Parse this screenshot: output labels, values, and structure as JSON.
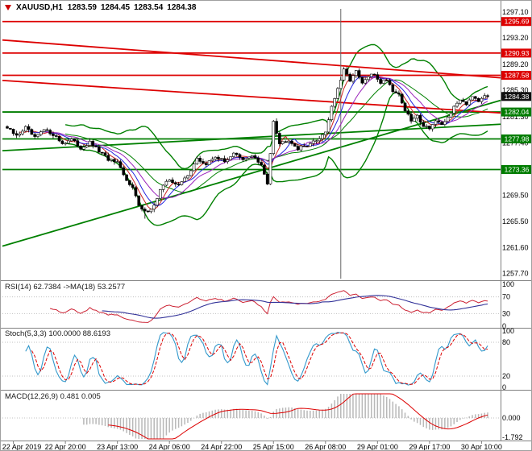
{
  "header": {
    "symbol": "XAUUSD,H1",
    "open": "1283.59",
    "high": "1284.45",
    "low": "1283.54",
    "close": "1284.38"
  },
  "colors": {
    "resistance": "#dd0000",
    "support": "#007d00",
    "current_badge": "#111111",
    "candle_up_fill": "#ffffff",
    "candle_down_fill": "#000000",
    "candle_border": "#000000",
    "bollinger": "#008000",
    "ma_fast": "#cc2222",
    "ma_mid": "#2222dd",
    "ma_slow": "#9922bb",
    "rsi_line": "#cc2233",
    "rsi_ma": "#333399",
    "stoch_k": "#3399cc",
    "stoch_d": "#dd0000",
    "macd_hist": "#b8b8b8",
    "macd_signal": "#dd0000",
    "grid_dotted": "#c0c0c0",
    "separator": "#808080",
    "axis_text": "#000000",
    "vertical_line": "#666666"
  },
  "price_axis": {
    "ticks": [
      "1297.10",
      "1293.20",
      "1289.20",
      "1285.30",
      "1281.30",
      "1277.40",
      "1273.40",
      "1269.50",
      "1265.50",
      "1261.60",
      "1257.70"
    ]
  },
  "time_axis": {
    "labels": [
      "22 Apr 2019",
      "22 Apr 20:00",
      "23 Apr 13:00",
      "24 Apr 06:00",
      "24 Apr 22:00",
      "25 Apr 15:00",
      "26 Apr 08:00",
      "29 Apr 01:00",
      "29 Apr 17:00",
      "30 Apr 10:00"
    ]
  },
  "levels": {
    "resistance": [
      "1295.69",
      "1290.93",
      "1287.58"
    ],
    "support": [
      "1282.04",
      "1277.98",
      "1273.36"
    ],
    "current": "1284.38"
  },
  "chart_data": [
    {
      "type": "candlestick",
      "title": "XAUUSD H1 candlestick chart with Bollinger Bands, moving averages, trendlines and horizontal support/resistance levels",
      "bar_count": 158,
      "price_range": [
        1256.9,
        1297.6
      ],
      "final_close": 1284.38,
      "session_low": 1265.95,
      "session_high": 1288.8,
      "close_waypoints": [
        [
          0,
          1279.6
        ],
        [
          3,
          1278.4
        ],
        [
          6,
          1279.7
        ],
        [
          9,
          1278.1
        ],
        [
          12,
          1279.3
        ],
        [
          15,
          1278.7
        ],
        [
          18,
          1277.3
        ],
        [
          21,
          1277.9
        ],
        [
          24,
          1276.6
        ],
        [
          27,
          1277.4
        ],
        [
          30,
          1276.1
        ],
        [
          33,
          1274.9
        ],
        [
          36,
          1274.3
        ],
        [
          39,
          1271.6
        ],
        [
          41,
          1270.9
        ],
        [
          43,
          1267.8
        ],
        [
          45,
          1266.9
        ],
        [
          48,
          1267.9
        ],
        [
          50,
          1270.3
        ],
        [
          53,
          1271.9
        ],
        [
          56,
          1270.9
        ],
        [
          59,
          1272.6
        ],
        [
          62,
          1274.9
        ],
        [
          65,
          1274.1
        ],
        [
          68,
          1275.4
        ],
        [
          71,
          1274.5
        ],
        [
          74,
          1275.9
        ],
        [
          77,
          1274.7
        ],
        [
          80,
          1275.6
        ],
        [
          83,
          1273.9
        ],
        [
          85,
          1271.2
        ],
        [
          87,
          1280.8
        ],
        [
          89,
          1277.3
        ],
        [
          92,
          1277.9
        ],
        [
          95,
          1276.5
        ],
        [
          98,
          1277.1
        ],
        [
          101,
          1277.7
        ],
        [
          104,
          1279.1
        ],
        [
          106,
          1282.9
        ],
        [
          108,
          1285.4
        ],
        [
          110,
          1288.3
        ],
        [
          112,
          1286.9
        ],
        [
          114,
          1288.1
        ],
        [
          116,
          1286.3
        ],
        [
          118,
          1287.4
        ],
        [
          120,
          1287.7
        ],
        [
          122,
          1286.5
        ],
        [
          124,
          1287.0
        ],
        [
          126,
          1285.3
        ],
        [
          128,
          1284.7
        ],
        [
          130,
          1282.3
        ],
        [
          132,
          1280.7
        ],
        [
          134,
          1281.4
        ],
        [
          136,
          1280.0
        ],
        [
          138,
          1279.7
        ],
        [
          140,
          1280.7
        ],
        [
          142,
          1279.9
        ],
        [
          144,
          1281.3
        ],
        [
          146,
          1282.7
        ],
        [
          148,
          1284.0
        ],
        [
          150,
          1283.3
        ],
        [
          152,
          1284.6
        ],
        [
          154,
          1283.8
        ],
        [
          156,
          1284.7
        ],
        [
          157,
          1284.38
        ]
      ],
      "overlays": [
        {
          "name": "Bollinger Bands (20,2)",
          "color": "#008000"
        },
        {
          "name": "SMA 5",
          "color": "#cc2222"
        },
        {
          "name": "SMA 8",
          "color": "#2222dd"
        },
        {
          "name": "SMA 13",
          "color": "#9922bb"
        }
      ],
      "trendlines": [
        {
          "color": "#dd0000",
          "price_start": 1292.9,
          "price_end": 1287.2
        },
        {
          "color": "#dd0000",
          "price_start": 1286.8,
          "price_end": 1281.9
        },
        {
          "color": "#008000",
          "price_start": 1261.8,
          "price_end": 1283.8
        },
        {
          "color": "#008000",
          "price_start": 1276.2,
          "price_end": 1280.2
        }
      ],
      "vertical_line_bar": 109
    },
    {
      "type": "line",
      "name": "RSI",
      "label": "RSI(14) 62.7384  ->MA(18) 53.2577",
      "period": 14,
      "ma_period": 18,
      "current": 62.7384,
      "ma_current": 53.2577,
      "range": [
        0,
        100
      ],
      "level_lines": [
        30,
        70
      ],
      "scale_ticks": [
        "100",
        "70",
        "30",
        "0"
      ]
    },
    {
      "type": "line",
      "name": "Stochastic",
      "label": "Stoch(5,3,3) 100.0000 88.6193",
      "current_k": 100.0,
      "current_d": 88.6193,
      "range": [
        0,
        100
      ],
      "level_lines": [
        20,
        80
      ],
      "scale_ticks": [
        "100",
        "80",
        "20",
        "0"
      ]
    },
    {
      "type": "bar",
      "name": "MACD",
      "label": "MACD(12,26,9) 0.481 0.005",
      "current_macd": 0.481,
      "current_signal": 0.005,
      "range": [
        -1.95,
        2.25
      ],
      "scale_ticks": [
        "0.000",
        "-1.792"
      ]
    }
  ]
}
